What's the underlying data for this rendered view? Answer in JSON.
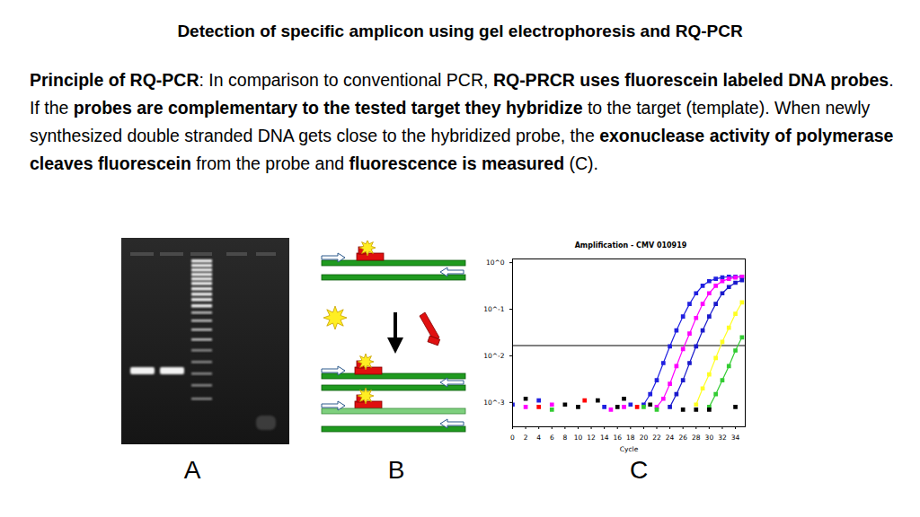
{
  "header": {
    "title": "Detection of specific amplicon using gel electrophoresis and RQ-PCR"
  },
  "body": [
    {
      "text": "Principle of RQ-PCR",
      "bold": true
    },
    {
      "text": ": In comparison to conventional PCR, ",
      "bold": false
    },
    {
      "text": "RQ-PRCR uses fluorescein labeled DNA probes",
      "bold": true
    },
    {
      "text": ". If the ",
      "bold": false
    },
    {
      "text": "probes are complementary to the tested target they hybridize",
      "bold": true
    },
    {
      "text": " to the target (template). When newly synthesized double stranded DNA gets close to the hybridized probe, the ",
      "bold": false
    },
    {
      "text": "exonuclease activity of polymerase cleaves fluorescein",
      "bold": true
    },
    {
      "text": " from the probe and ",
      "bold": false
    },
    {
      "text": "fluorescence is measured",
      "bold": true
    },
    {
      "text": " (C).",
      "bold": false
    }
  ],
  "panels": [
    "A",
    "B",
    "C"
  ],
  "chart_data": {
    "type": "line",
    "title": "Amplification - CMV 010919",
    "x_label": "Cycle",
    "xlim": [
      0,
      35.5
    ],
    "xticks": [
      0,
      2,
      4,
      6,
      8,
      10,
      12,
      14,
      16,
      18,
      20,
      22,
      24,
      26,
      28,
      30,
      32,
      34
    ],
    "ylim": [
      0.0003,
      1.2
    ],
    "yticks": [
      {
        "value": 1,
        "label": "10^0"
      },
      {
        "value": 0.1,
        "label": "10^-1"
      },
      {
        "value": 0.01,
        "label": "10^-2"
      },
      {
        "value": 0.001,
        "label": "10^-3"
      }
    ],
    "log": "y",
    "grid": false,
    "marker": "square",
    "threshold": 0.0166,
    "series": [
      {
        "color": "#2020e0",
        "x": [
          20,
          21,
          22,
          23,
          24,
          25,
          26,
          27,
          28,
          29,
          30,
          31,
          32,
          33,
          34,
          35
        ],
        "values": [
          0.0009,
          0.0015,
          0.003,
          0.007,
          0.016,
          0.035,
          0.07,
          0.13,
          0.22,
          0.32,
          0.4,
          0.45,
          0.48,
          0.5,
          0.5,
          0.5
        ]
      },
      {
        "color": "#ff00ff",
        "x": [
          22,
          23,
          24,
          25,
          26,
          27,
          28,
          29,
          30,
          31,
          32,
          33,
          34,
          35
        ],
        "values": [
          0.0008,
          0.0012,
          0.0025,
          0.006,
          0.014,
          0.03,
          0.065,
          0.13,
          0.22,
          0.32,
          0.4,
          0.45,
          0.48,
          0.5
        ]
      },
      {
        "color": "#1a1acc",
        "x": [
          24,
          25,
          26,
          27,
          28,
          29,
          30,
          31,
          32,
          33,
          34,
          35
        ],
        "values": [
          0.0008,
          0.0015,
          0.003,
          0.007,
          0.016,
          0.035,
          0.07,
          0.13,
          0.22,
          0.3,
          0.37,
          0.42
        ]
      },
      {
        "color": "#ffff22",
        "x": [
          28,
          29,
          30,
          31,
          32,
          33,
          34,
          35
        ],
        "values": [
          0.0009,
          0.002,
          0.004,
          0.009,
          0.02,
          0.04,
          0.08,
          0.14
        ]
      },
      {
        "color": "#33cc33",
        "x": [
          30,
          31,
          32,
          33,
          34,
          35
        ],
        "values": [
          0.0008,
          0.0015,
          0.003,
          0.006,
          0.013,
          0.025
        ]
      },
      {
        "type": "scatter",
        "color": "#000000",
        "x": [
          2,
          8,
          10,
          13,
          16,
          17,
          21,
          26,
          28,
          30,
          34
        ],
        "values": [
          0.0012,
          0.0009,
          0.0008,
          0.0011,
          0.0008,
          0.0012,
          0.0009,
          0.0007,
          0.0007,
          0.0007,
          0.0008
        ]
      },
      {
        "type": "scatter",
        "color": "#ff0000",
        "x": [
          4,
          11,
          19
        ],
        "values": [
          0.0008,
          0.0011,
          0.0008
        ]
      },
      {
        "type": "scatter",
        "color": "#2020e0",
        "x": [
          0,
          4,
          14,
          18
        ],
        "values": [
          0.0009,
          0.0011,
          0.0008,
          0.0009
        ]
      },
      {
        "type": "scatter",
        "color": "#ff00ff",
        "x": [
          2,
          6,
          15,
          17
        ],
        "values": [
          0.0008,
          0.0009,
          0.0007,
          0.0008
        ]
      },
      {
        "type": "scatter",
        "color": "#33cc33",
        "x": [
          6,
          20,
          22
        ],
        "values": [
          0.0007,
          0.0008,
          0.0007
        ]
      }
    ]
  }
}
